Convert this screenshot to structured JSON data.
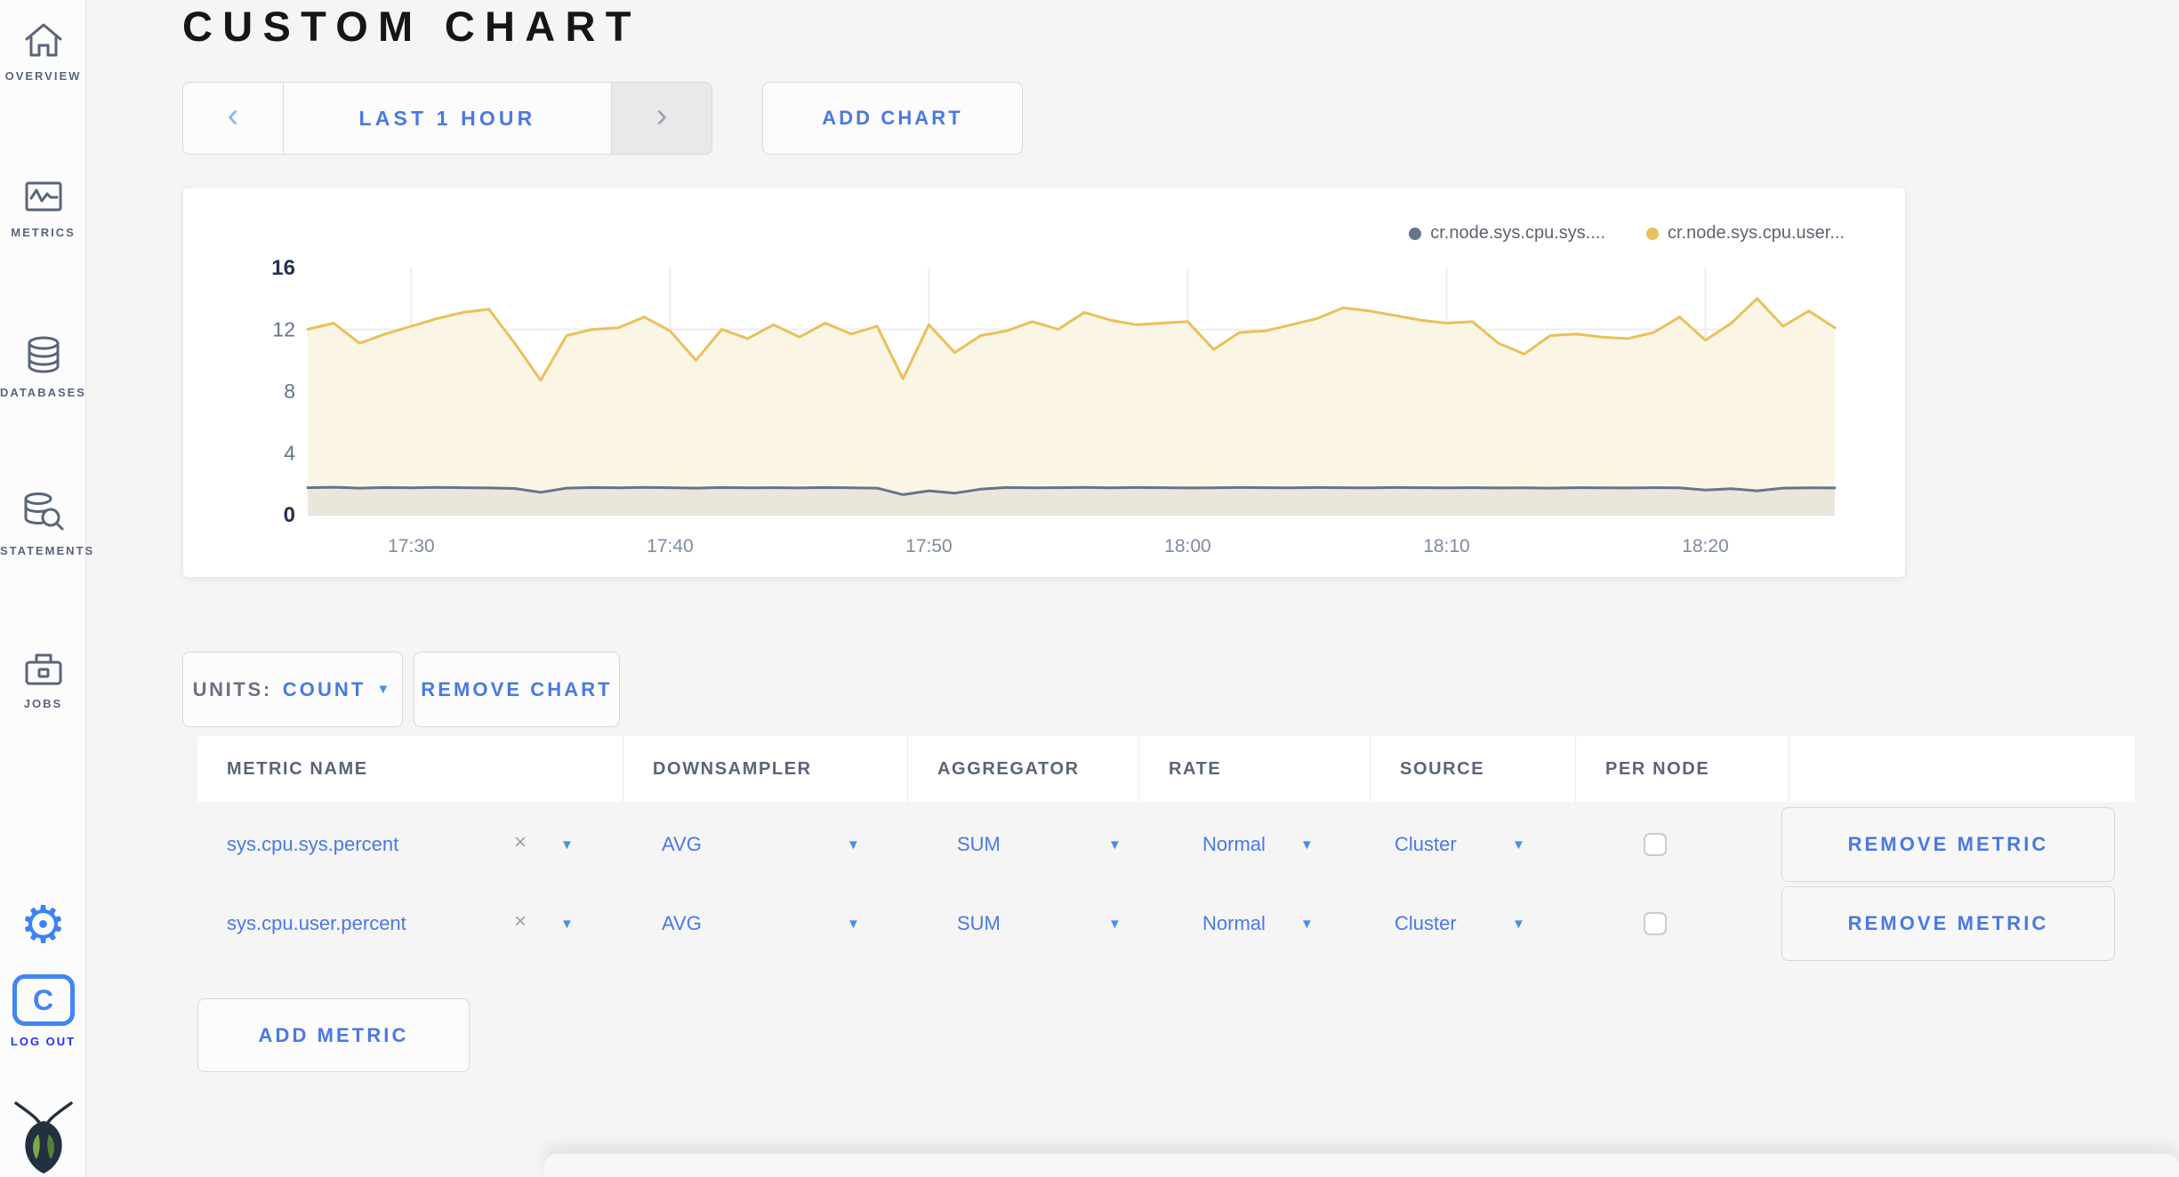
{
  "sidebar": {
    "items": [
      {
        "label": "OVERVIEW"
      },
      {
        "label": "METRICS"
      },
      {
        "label": "DATABASES"
      },
      {
        "label": "STATEMENTS"
      },
      {
        "label": "JOBS"
      }
    ],
    "logout_label": "LOG OUT"
  },
  "page": {
    "title": "CUSTOM CHART"
  },
  "toolbar": {
    "prev_arrow": "‹",
    "time_range_label": "LAST 1 HOUR",
    "next_arrow": "›",
    "add_chart_label": "ADD CHART"
  },
  "chart_controls": {
    "units_label": "UNITS:",
    "units_value": "COUNT",
    "units_caret": "▼",
    "remove_chart_label": "REMOVE CHART",
    "add_metric_label": "ADD METRIC"
  },
  "metrics_table": {
    "columns": [
      "METRIC NAME",
      "DOWNSAMPLER",
      "AGGREGATOR",
      "RATE",
      "SOURCE",
      "PER NODE",
      ""
    ],
    "rows": [
      {
        "metric": "sys.cpu.sys.percent",
        "clear": "×",
        "caret": "▼",
        "downsampler": "AVG",
        "aggregator": "SUM",
        "rate": "Normal",
        "source": "Cluster",
        "per_node_checked": false,
        "remove_label": "REMOVE METRIC"
      },
      {
        "metric": "sys.cpu.user.percent",
        "clear": "×",
        "caret": "▼",
        "downsampler": "AVG",
        "aggregator": "SUM",
        "rate": "Normal",
        "source": "Cluster",
        "per_node_checked": false,
        "remove_label": "REMOVE METRIC"
      }
    ]
  },
  "chart_data": {
    "type": "line",
    "title": "",
    "xlabel": "",
    "ylabel": "",
    "ylim": [
      0,
      16
    ],
    "yticks": [
      0,
      4,
      8,
      12,
      16
    ],
    "grid_yticks": [
      4,
      8,
      12
    ],
    "xticklabels": [
      "17:30",
      "17:40",
      "17:50",
      "18:00",
      "18:10",
      "18:20"
    ],
    "xtick_indices": [
      4,
      14,
      24,
      34,
      44,
      54
    ],
    "x_start": "17:26",
    "x_step_minutes": 1,
    "grid": true,
    "legend_position": "top-right",
    "legend": [
      {
        "label": "cr.node.sys.cpu.sys....",
        "color": "#67748b"
      },
      {
        "label": "cr.node.sys.cpu.user...",
        "color": "#e9c05a"
      }
    ],
    "series": [
      {
        "name": "cr.node.sys.cpu.sys....",
        "color": "#67748b",
        "fill": "#eae6dc",
        "values": [
          1.75,
          1.78,
          1.72,
          1.76,
          1.74,
          1.77,
          1.75,
          1.73,
          1.7,
          1.45,
          1.72,
          1.76,
          1.74,
          1.77,
          1.75,
          1.72,
          1.76,
          1.74,
          1.75,
          1.73,
          1.76,
          1.74,
          1.72,
          1.3,
          1.55,
          1.4,
          1.65,
          1.76,
          1.74,
          1.75,
          1.77,
          1.74,
          1.76,
          1.75,
          1.73,
          1.74,
          1.76,
          1.75,
          1.74,
          1.76,
          1.75,
          1.74,
          1.76,
          1.75,
          1.74,
          1.75,
          1.73,
          1.74,
          1.72,
          1.75,
          1.74,
          1.73,
          1.75,
          1.74,
          1.6,
          1.68,
          1.55,
          1.72,
          1.74,
          1.73
        ]
      },
      {
        "name": "cr.node.sys.cpu.user...",
        "color": "#e9c05a",
        "fill": "#faf5e5",
        "values": [
          12.0,
          12.4,
          11.1,
          11.7,
          12.2,
          12.7,
          13.1,
          13.3,
          11.1,
          8.7,
          11.6,
          12.0,
          12.1,
          12.8,
          11.9,
          10.0,
          12.0,
          11.4,
          12.3,
          11.5,
          12.4,
          11.7,
          12.2,
          8.8,
          12.3,
          10.5,
          11.6,
          11.9,
          12.5,
          12.0,
          13.1,
          12.6,
          12.3,
          12.4,
          12.5,
          10.7,
          11.8,
          11.9,
          12.3,
          12.7,
          13.4,
          13.2,
          12.9,
          12.6,
          12.4,
          12.5,
          11.1,
          10.4,
          11.6,
          11.7,
          11.5,
          11.4,
          11.8,
          12.8,
          11.3,
          12.4,
          14.0,
          12.2,
          13.2,
          12.1
        ]
      }
    ]
  },
  "colors": {
    "accent_blue": "#4a79e2",
    "caret_blue": "#4a90e2",
    "logout_blue": "#2330ee",
    "icon_blue": "#3c82f5",
    "sidebar_slate": "#5a6479",
    "yellow_series": "#e9c05a",
    "gray_series": "#67748b",
    "page_bg": "#f5f5f6"
  }
}
